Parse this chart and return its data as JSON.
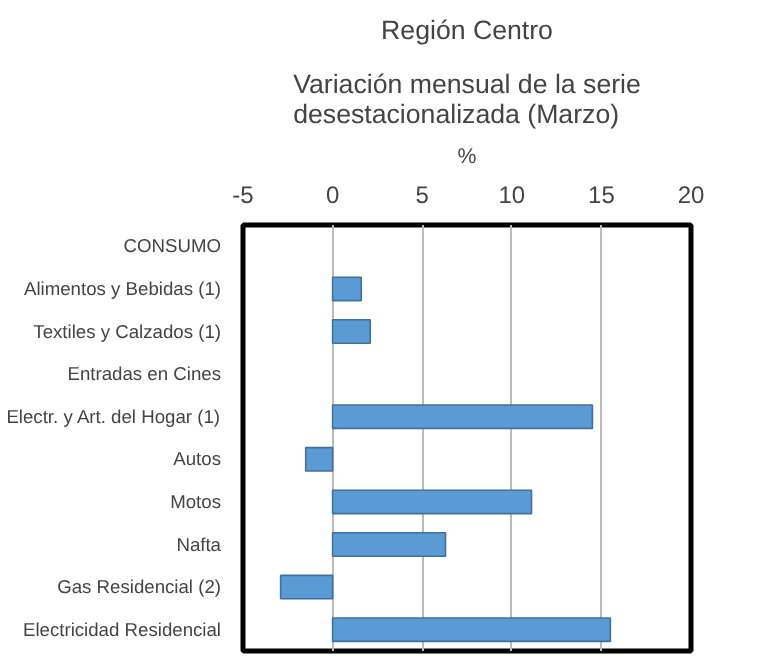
{
  "chart_data": {
    "type": "bar",
    "orientation": "horizontal",
    "title": "Región Centro",
    "subtitle": "Variación mensual de la serie desestacionalizada (Marzo)",
    "xlabel": "%",
    "categories": [
      "CONSUMO",
      "Alimentos y Bebidas (1)",
      "Textiles y Calzados (1)",
      "Entradas en Cines",
      "Electr. y Art. del Hogar (1)",
      "Autos",
      "Motos",
      "Nafta",
      "Gas Residencial (2)",
      "Electricidad Residencial"
    ],
    "values": [
      null,
      1.6,
      2.1,
      null,
      14.5,
      -1.5,
      11.1,
      6.3,
      -2.9,
      15.5
    ],
    "color": "#5b9bd5",
    "xlim": [
      -5,
      20
    ],
    "xticks": [
      -5,
      0,
      5,
      10,
      15,
      20
    ],
    "grid": "x"
  }
}
